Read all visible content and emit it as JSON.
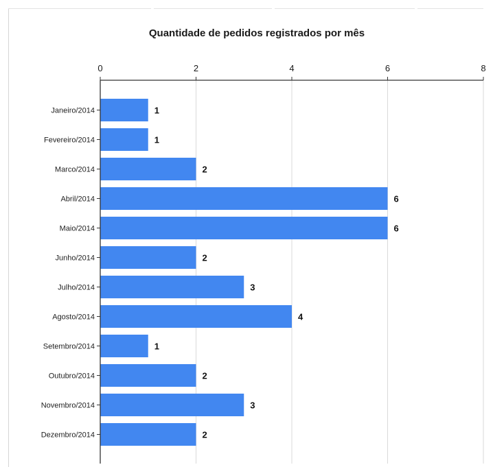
{
  "chart_data": {
    "type": "bar",
    "orientation": "horizontal",
    "title": "Quantidade de pedidos registrados por mês",
    "xlabel": "",
    "ylabel": "",
    "xlim": [
      0,
      8
    ],
    "x_ticks": [
      "0",
      "2",
      "4",
      "6",
      "8"
    ],
    "x_axis_position": "top",
    "grid": true,
    "legend": "none",
    "bar_color": "#4287f0",
    "categories": [
      "Janeiro/2014",
      "Fevereiro/2014",
      "Marco/2014",
      "Abril/2014",
      "Maio/2014",
      "Junho/2014",
      "Julho/2014",
      "Agosto/2014",
      "Setembro/2014",
      "Outubro/2014",
      "Novembro/2014",
      "Dezembro/2014"
    ],
    "values": [
      1,
      1,
      2,
      6,
      6,
      2,
      3,
      4,
      1,
      2,
      3,
      2
    ]
  }
}
